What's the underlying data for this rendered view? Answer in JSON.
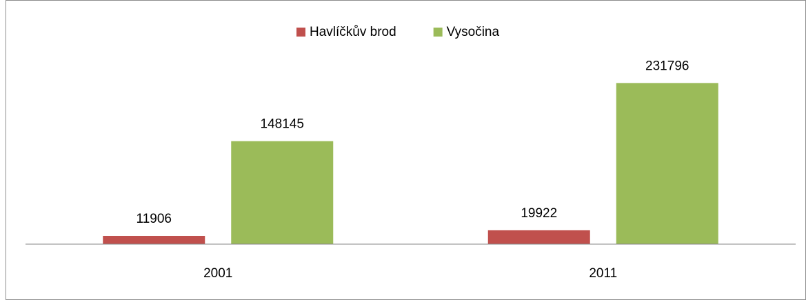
{
  "chart_data": {
    "type": "bar",
    "categories": [
      "2001",
      "2011"
    ],
    "series": [
      {
        "name": "Havlíčkův brod",
        "color": "#c0504d",
        "values": [
          11906,
          19922
        ]
      },
      {
        "name": "Vysočina",
        "color": "#9bbb59",
        "values": [
          148145,
          231796
        ]
      }
    ],
    "ylim": [
      0,
      250000
    ],
    "legend": "top"
  }
}
